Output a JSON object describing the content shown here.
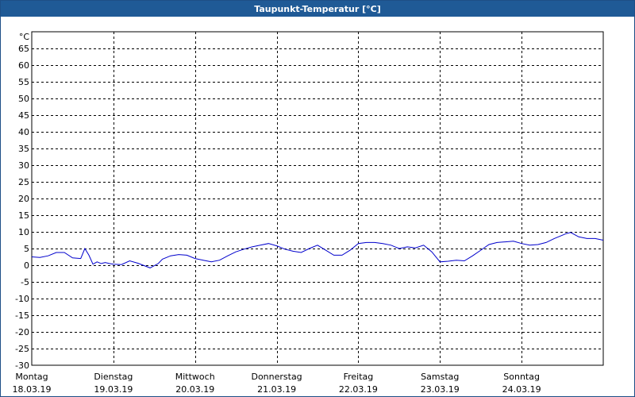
{
  "title": "Taupunkt-Temperatur [°C]",
  "chart_data": {
    "type": "line",
    "ylabel": "°C",
    "ylim": [
      -30,
      70
    ],
    "yticks": [
      65,
      60,
      55,
      50,
      45,
      40,
      35,
      30,
      25,
      20,
      15,
      10,
      5,
      0,
      -5,
      -10,
      -15,
      -20,
      -25,
      -30
    ],
    "xlim": [
      0,
      7
    ],
    "days": [
      {
        "name": "Montag",
        "date": "18.03.19"
      },
      {
        "name": "Dienstag",
        "date": "19.03.19"
      },
      {
        "name": "Mittwoch",
        "date": "20.03.19"
      },
      {
        "name": "Donnerstag",
        "date": "21.03.19"
      },
      {
        "name": "Freitag",
        "date": "22.03.19"
      },
      {
        "name": "Samstag",
        "date": "23.03.19"
      },
      {
        "name": "Sonntag",
        "date": "24.03.19"
      }
    ],
    "grid": true,
    "series_color": "#0000cc",
    "series": [
      {
        "x": [
          0,
          0.1,
          0.2,
          0.3,
          0.4,
          0.5,
          0.6,
          0.65,
          0.7,
          0.75,
          0.8,
          0.85,
          0.9,
          0.95,
          1.0,
          1.1,
          1.2,
          1.3,
          1.45,
          1.55,
          1.6,
          1.7,
          1.8,
          1.9,
          2.0,
          2.1,
          2.2,
          2.3,
          2.4,
          2.5,
          2.6,
          2.7,
          2.8,
          2.9,
          3.0,
          3.1,
          3.2,
          3.3,
          3.4,
          3.5,
          3.6,
          3.7,
          3.8,
          3.9,
          4.0,
          4.1,
          4.2,
          4.3,
          4.4,
          4.45,
          4.5,
          4.6,
          4.7,
          4.8,
          4.9,
          5.0,
          5.1,
          5.2,
          5.3,
          5.4,
          5.5,
          5.6,
          5.7,
          5.8,
          5.9,
          6.0,
          6.1,
          6.2,
          6.3,
          6.4,
          6.5,
          6.55,
          6.6,
          6.7,
          6.8,
          6.9,
          7.0
        ],
        "y": [
          2.5,
          2.3,
          2.8,
          3.8,
          3.8,
          2.2,
          2.0,
          5.0,
          3.0,
          0.3,
          1.0,
          0.5,
          0.8,
          0.5,
          0.3,
          0.2,
          1.3,
          0.6,
          -0.8,
          0.5,
          1.8,
          2.8,
          3.2,
          3.0,
          2.0,
          1.5,
          1.0,
          1.5,
          2.8,
          4.0,
          4.8,
          5.5,
          6.0,
          6.5,
          5.8,
          4.8,
          4.2,
          3.8,
          5.0,
          6.0,
          4.5,
          3.0,
          3.0,
          4.5,
          6.5,
          6.8,
          6.8,
          6.5,
          6.0,
          5.5,
          5.0,
          5.5,
          5.2,
          6.0,
          4.0,
          1.0,
          1.2,
          1.5,
          1.3,
          2.8,
          4.5,
          6.2,
          6.8,
          7.0,
          7.2,
          6.5,
          6.0,
          6.2,
          6.8,
          8.0,
          9.0,
          9.5,
          9.8,
          8.5,
          8.0,
          8.0,
          7.5
        ]
      }
    ]
  }
}
